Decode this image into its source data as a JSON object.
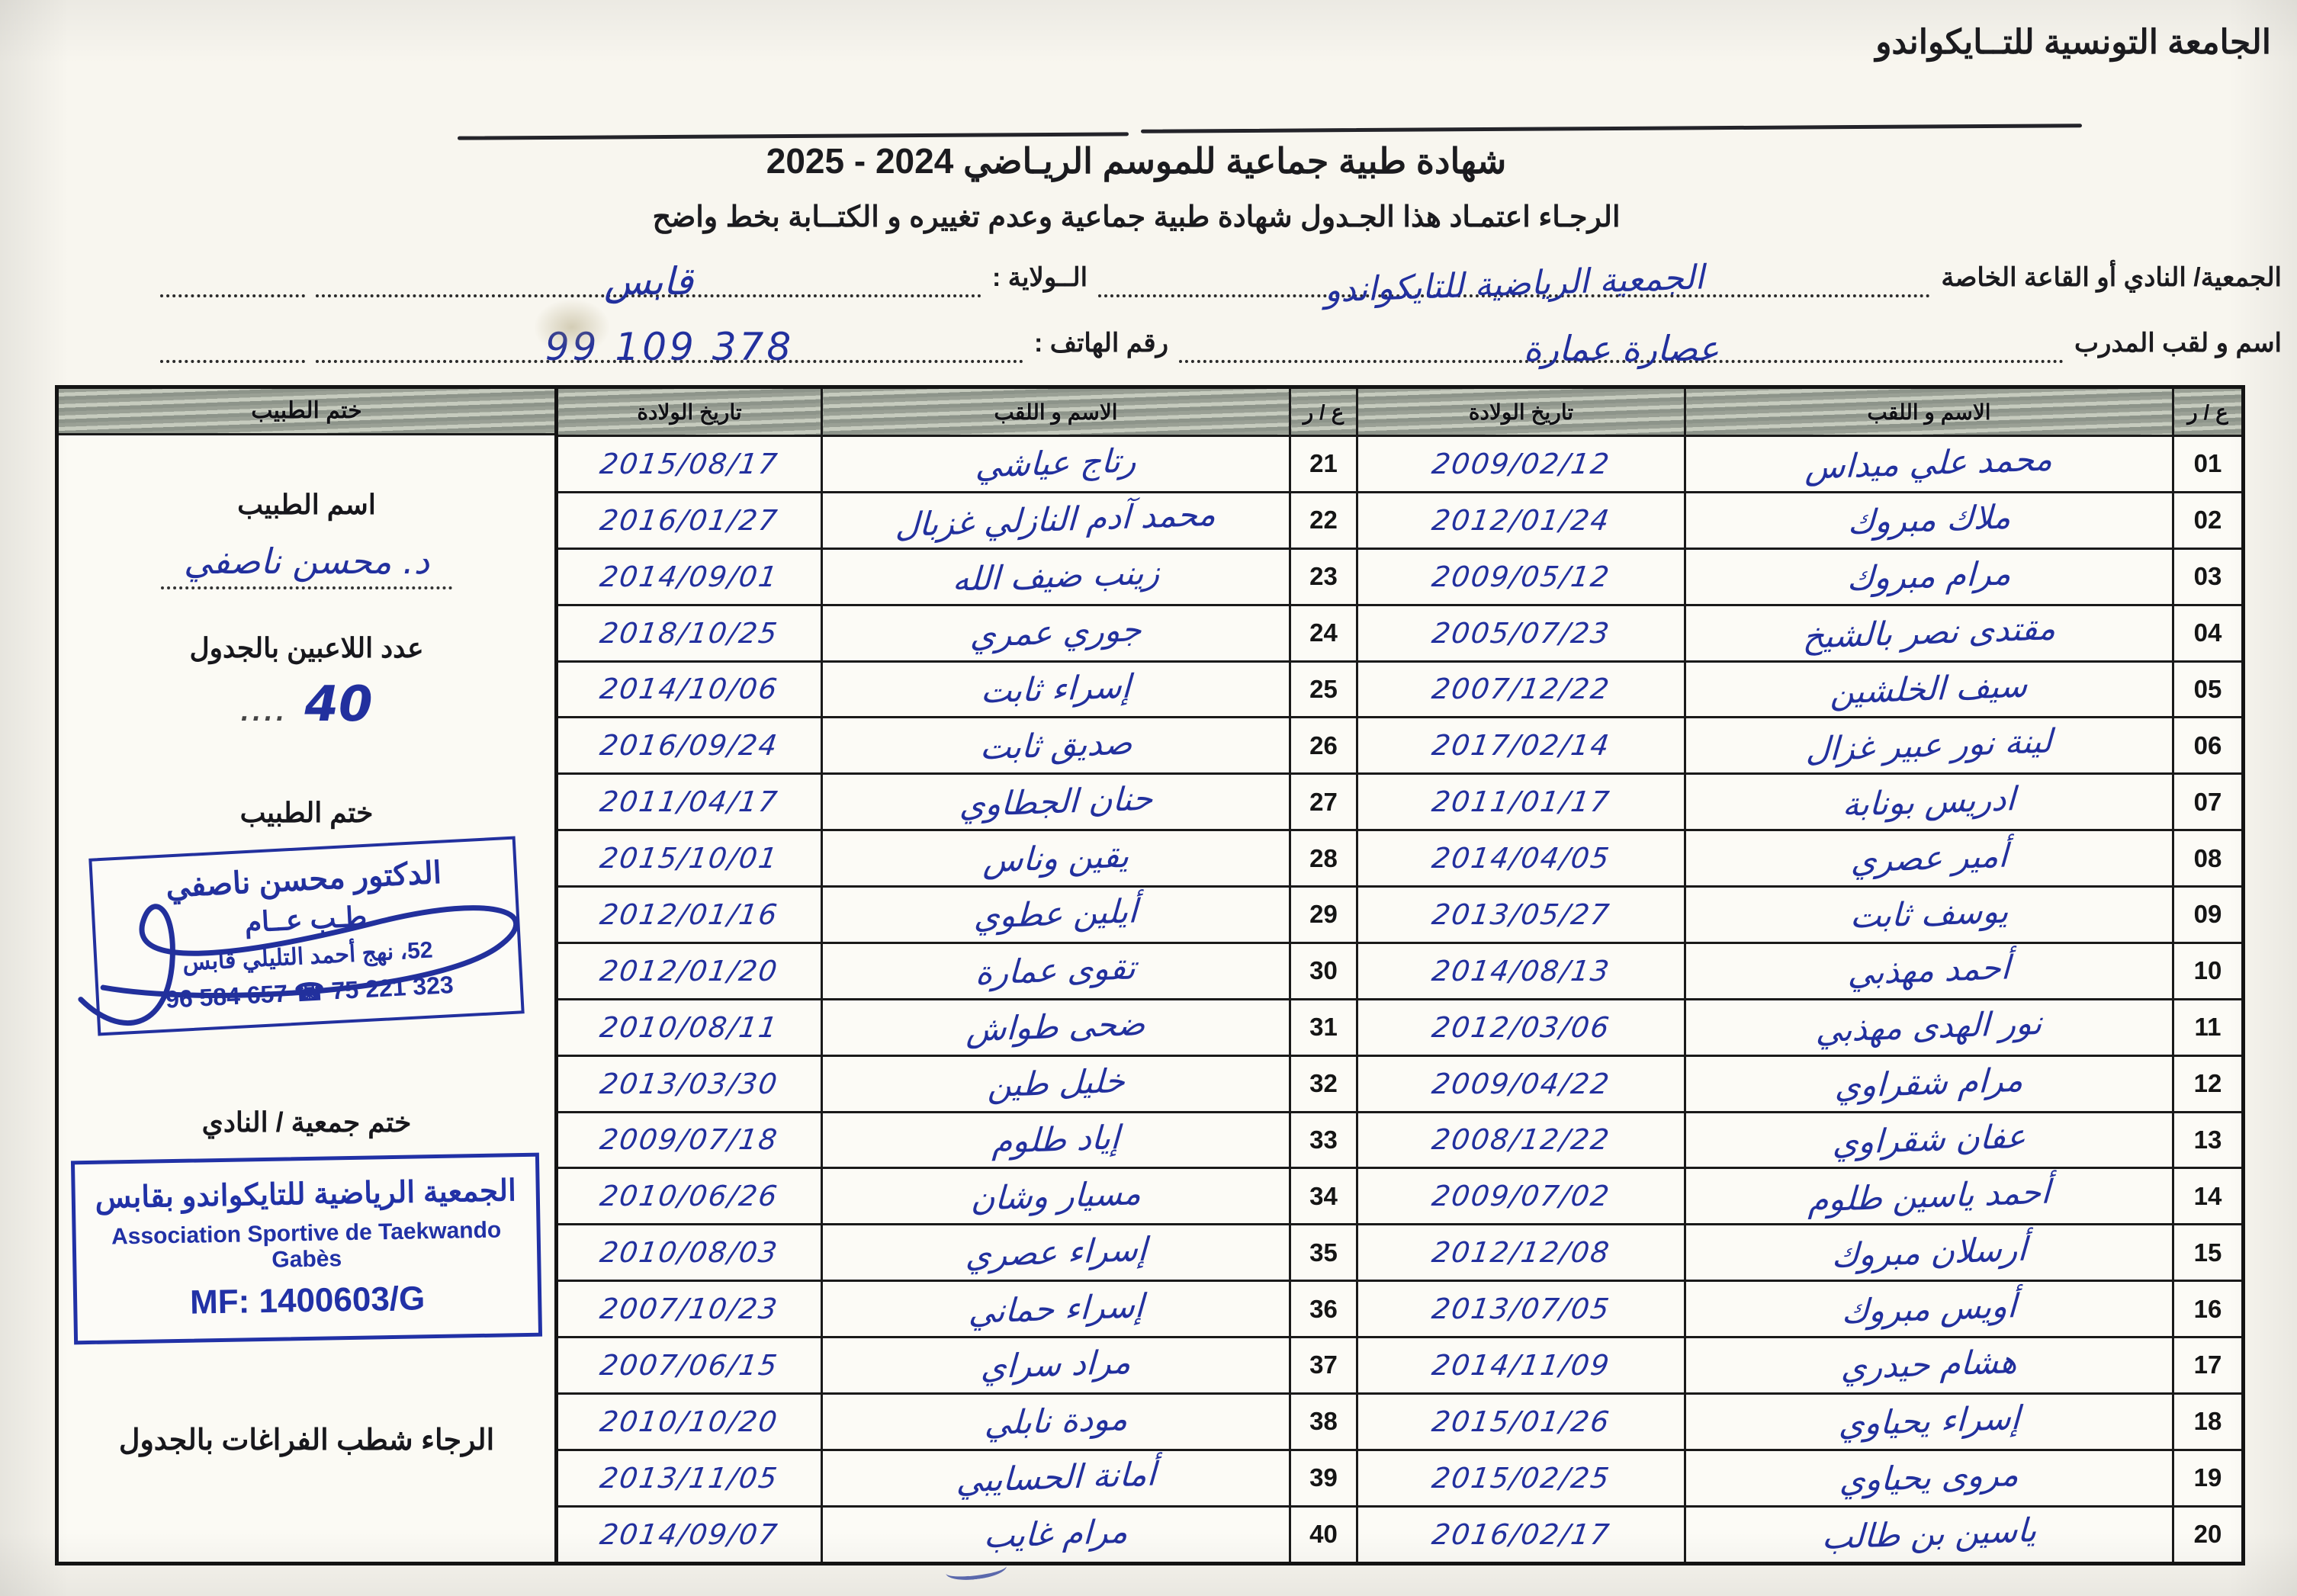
{
  "page": {
    "federation": "الجامعة التونسية للتــايكواندو",
    "title": "شهادة طبية جماعية  للموسم الريـاضي  2024 - 2025",
    "subtitle": "الرجـاء اعتمـاد هذا الجـدول  شهادة طبية جماعية وعدم تغييره و الكتــابة بخط واضح"
  },
  "form": {
    "club_label": "الجمعية/ النادي أو القاعة الخاصة",
    "club_value": "الجمعية الرياضية للتايكواندو",
    "state_label": "الــولاية :",
    "state_value": "قابس",
    "coach_label": "اسم و لقب المدرب",
    "coach_value": "عصارة عمارة",
    "phone_label": "رقم الهاتف :",
    "phone_value": "99 109 378"
  },
  "table": {
    "headers": {
      "num": "ع / ر",
      "name": "الاسم و اللقب",
      "dob": "تاريخ الولادة",
      "doctor": "ختم الطبيب"
    },
    "players_right": [
      {
        "num": "01",
        "name": "محمد علي ميداس",
        "dob": "2009/02/12"
      },
      {
        "num": "02",
        "name": "ملاك مبروك",
        "dob": "2012/01/24"
      },
      {
        "num": "03",
        "name": "مرام مبروك",
        "dob": "2009/05/12"
      },
      {
        "num": "04",
        "name": "مقتدى نصر بالشيخ",
        "dob": "2005/07/23"
      },
      {
        "num": "05",
        "name": "سيف الخلشين",
        "dob": "2007/12/22"
      },
      {
        "num": "06",
        "name": "لينة نور عبير غزال",
        "dob": "2017/02/14"
      },
      {
        "num": "07",
        "name": "ادريس بونابة",
        "dob": "2011/01/17"
      },
      {
        "num": "08",
        "name": "أمير عصري",
        "dob": "2014/04/05"
      },
      {
        "num": "09",
        "name": "يوسف ثابت",
        "dob": "2013/05/27"
      },
      {
        "num": "10",
        "name": "أحمد مهذبي",
        "dob": "2014/08/13"
      },
      {
        "num": "11",
        "name": "نور الهدى مهذبي",
        "dob": "2012/03/06"
      },
      {
        "num": "12",
        "name": "مرام شقراوي",
        "dob": "2009/04/22"
      },
      {
        "num": "13",
        "name": "عفان شقراوي",
        "dob": "2008/12/22"
      },
      {
        "num": "14",
        "name": "أحمد ياسين طلوم",
        "dob": "2009/07/02"
      },
      {
        "num": "15",
        "name": "أرسلان مبروك",
        "dob": "2012/12/08"
      },
      {
        "num": "16",
        "name": "أويس مبروك",
        "dob": "2013/07/05"
      },
      {
        "num": "17",
        "name": "هشام حيدري",
        "dob": "2014/11/09"
      },
      {
        "num": "18",
        "name": "إسراء يحياوي",
        "dob": "2015/01/26"
      },
      {
        "num": "19",
        "name": "مروى يحياوي",
        "dob": "2015/02/25"
      },
      {
        "num": "20",
        "name": "ياسين بن طالب",
        "dob": "2016/02/17"
      }
    ],
    "players_left": [
      {
        "num": "21",
        "name": "رتاج عياشي",
        "dob": "2015/08/17"
      },
      {
        "num": "22",
        "name": "محمد آدم النازلي غزبال",
        "dob": "2016/01/27"
      },
      {
        "num": "23",
        "name": "زينب ضيف الله",
        "dob": "2014/09/01"
      },
      {
        "num": "24",
        "name": "جوري عمري",
        "dob": "2018/10/25"
      },
      {
        "num": "25",
        "name": "إسراء ثابت",
        "dob": "2014/10/06"
      },
      {
        "num": "26",
        "name": "صديق ثابت",
        "dob": "2016/09/24"
      },
      {
        "num": "27",
        "name": "حنان الجطاوي",
        "dob": "2011/04/17"
      },
      {
        "num": "28",
        "name": "يقين وناس",
        "dob": "2015/10/01"
      },
      {
        "num": "29",
        "name": "أيلين عطوي",
        "dob": "2012/01/16"
      },
      {
        "num": "30",
        "name": "تقوى عمارة",
        "dob": "2012/01/20"
      },
      {
        "num": "31",
        "name": "ضحى طواش",
        "dob": "2010/08/11"
      },
      {
        "num": "32",
        "name": "خليل طين",
        "dob": "2013/03/30"
      },
      {
        "num": "33",
        "name": "إياد طلوم",
        "dob": "2009/07/18"
      },
      {
        "num": "34",
        "name": "مسيار وشان",
        "dob": "2010/06/26"
      },
      {
        "num": "35",
        "name": "إسراء عصري",
        "dob": "2010/08/03"
      },
      {
        "num": "36",
        "name": "إسراء حماني",
        "dob": "2007/10/23"
      },
      {
        "num": "37",
        "name": "مراد سراي",
        "dob": "2007/06/15"
      },
      {
        "num": "38",
        "name": "مودة نابلي",
        "dob": "2010/10/20"
      },
      {
        "num": "39",
        "name": "أمانة الحسايبي",
        "dob": "2013/11/05"
      },
      {
        "num": "40",
        "name": "مرام غايب",
        "dob": "2014/09/07"
      }
    ]
  },
  "doctor_panel": {
    "name_label": "اسم الطبيب",
    "name_value": "د. محسن ناصفي",
    "count_label": "عدد اللاعبين بالجدول",
    "count_value": "40",
    "count_dots": "....",
    "stamp_label": "ختم الطبيب",
    "doctor_stamp": {
      "line1": "الدكتور محسن ناصفي",
      "line2": "طـب عــام",
      "line3": "52، نهج أحمد التليلي قابس",
      "line4": "96 584 657 ☎ 75 221 323"
    },
    "club_stamp_label": "ختم جمعية / النادي",
    "club_stamp": {
      "line1": "الجمعية الرياضية للتايكواندو بقابس",
      "line2": "Association Sportive de Taekwando Gabès",
      "line3": "MF: 1400603/G"
    },
    "note": "الرجاء شطب  الفراغات بالجدول"
  },
  "colors": {
    "ink_blue": "#22309e",
    "stamp_blue": "#2131a6",
    "paper": "#f8f6ef"
  }
}
